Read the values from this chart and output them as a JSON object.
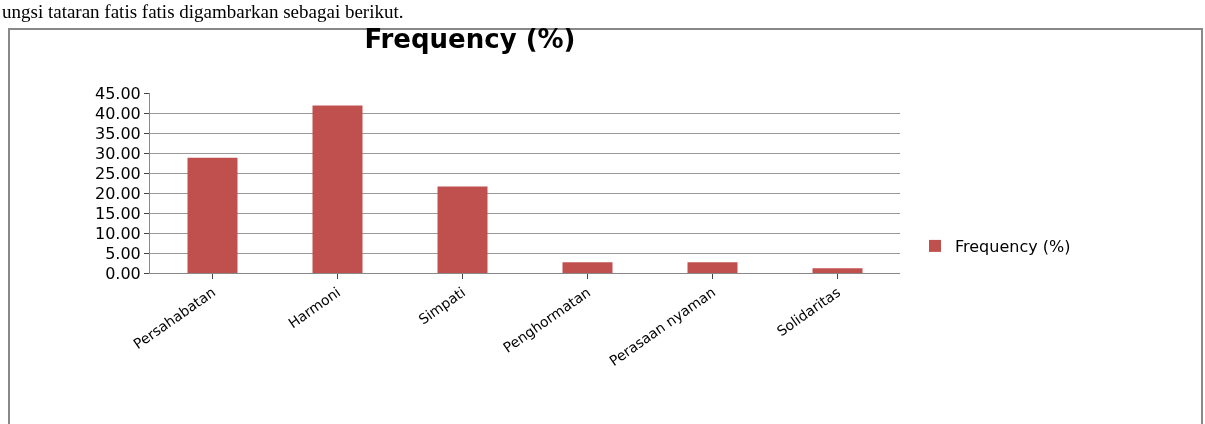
{
  "chart_data": {
    "type": "bar",
    "title": "Frequency (%)",
    "annotations": [
      "ungsi tataran fatis fatis digambarkan sebagai berikut."
    ],
    "categories": [
      "Persahabatan",
      "Harmoni",
      "Simpati",
      "Penghormatan",
      "Perasaan nyaman",
      "Solidaritas"
    ],
    "series": [
      {
        "name": "Frequency (%)",
        "color": "#c0504d",
        "values": [
          28.8,
          41.9,
          21.6,
          2.7,
          2.7,
          1.2
        ]
      }
    ],
    "ylim": [
      0,
      45
    ],
    "yticks": [
      {
        "value": 0,
        "label": "0.00"
      },
      {
        "value": 5,
        "label": "5.00"
      },
      {
        "value": 10,
        "label": "10.00"
      },
      {
        "value": 15,
        "label": "15.00"
      },
      {
        "value": 20,
        "label": "20.00"
      },
      {
        "value": 25,
        "label": "25.00"
      },
      {
        "value": 30,
        "label": "30.00"
      },
      {
        "value": 35,
        "label": "35.00"
      },
      {
        "value": 40,
        "label": "40.00"
      },
      {
        "value": 45,
        "label": "45.00"
      }
    ],
    "grid": "y",
    "legend": "right"
  }
}
